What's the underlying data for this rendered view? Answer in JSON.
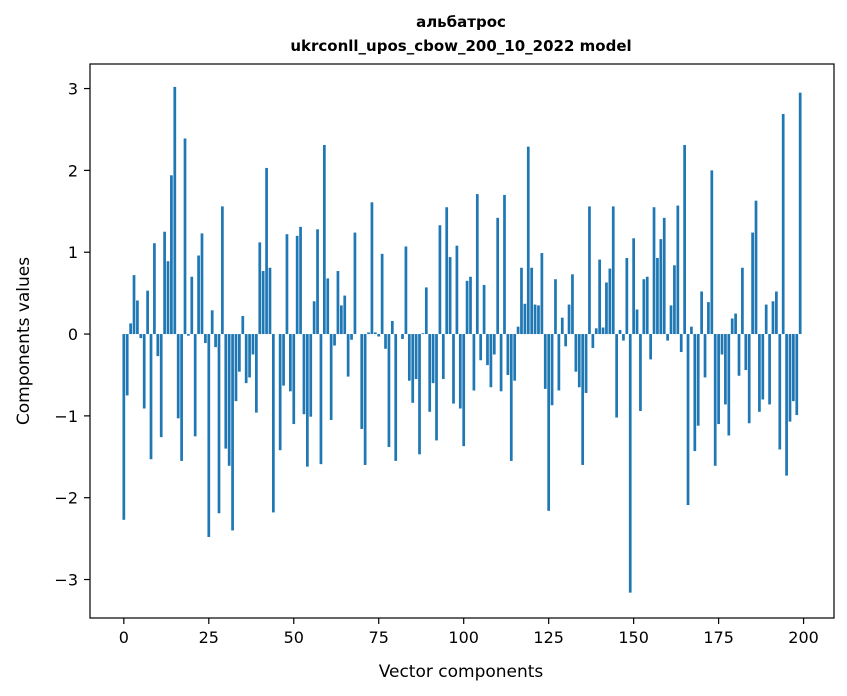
{
  "chart_data": {
    "type": "bar",
    "title_line1": "альбатрос",
    "title_line2": "ukrconll_upos_cbow_200_10_2022 model",
    "xlabel": "Vector components",
    "ylabel": "Components values",
    "xlim": [
      -9.95,
      208.95
    ],
    "ylim": [
      -3.47,
      3.3
    ],
    "xticks": [
      0,
      25,
      50,
      75,
      100,
      125,
      150,
      175,
      200
    ],
    "xtick_labels": [
      "0",
      "25",
      "50",
      "75",
      "100",
      "125",
      "150",
      "175",
      "200"
    ],
    "yticks": [
      -3,
      -2,
      -1,
      0,
      1,
      2,
      3
    ],
    "ytick_labels": [
      "−3",
      "−2",
      "−1",
      "0",
      "1",
      "2",
      "3"
    ],
    "bar_color": "#1f77b4",
    "grid": false,
    "legend": "none",
    "values": [
      -2.27,
      -0.75,
      0.13,
      0.72,
      0.41,
      -0.05,
      -0.91,
      0.53,
      -1.53,
      1.11,
      -0.27,
      -1.26,
      1.25,
      0.89,
      1.94,
      3.02,
      -1.03,
      -1.55,
      2.39,
      -0.02,
      0.7,
      -1.25,
      0.96,
      1.23,
      -0.11,
      -2.48,
      0.29,
      -0.16,
      -2.19,
      1.56,
      -1.4,
      -1.61,
      -2.4,
      -0.82,
      -0.46,
      0.22,
      -0.6,
      -0.53,
      -0.25,
      -0.96,
      1.12,
      0.77,
      2.03,
      0.81,
      -2.18,
      0.0,
      -1.42,
      -0.63,
      1.22,
      -0.7,
      -1.1,
      1.2,
      1.31,
      -0.98,
      -1.62,
      -1.01,
      0.4,
      1.28,
      -1.59,
      2.31,
      0.68,
      -1.05,
      -0.14,
      0.77,
      0.35,
      0.47,
      -0.52,
      -0.07,
      1.24,
      0.0,
      -1.16,
      -1.6,
      0.02,
      1.61,
      0.02,
      -0.03,
      0.98,
      -0.18,
      -1.38,
      0.16,
      -1.55,
      0.0,
      -0.06,
      1.07,
      -0.57,
      -0.84,
      -0.55,
      -1.47,
      0.01,
      0.57,
      -0.95,
      -0.6,
      -1.3,
      1.33,
      -0.55,
      1.55,
      0.94,
      -0.85,
      1.08,
      -0.91,
      -1.37,
      0.65,
      0.7,
      -0.69,
      1.71,
      -0.32,
      0.6,
      -0.38,
      -0.65,
      -0.25,
      1.42,
      -0.7,
      1.7,
      -0.5,
      -1.55,
      -0.57,
      0.09,
      0.81,
      0.37,
      2.29,
      0.81,
      0.36,
      0.35,
      0.99,
      -0.67,
      -2.16,
      -0.87,
      0.67,
      -0.69,
      0.2,
      -0.15,
      0.36,
      0.73,
      -0.46,
      -0.65,
      -1.6,
      -0.72,
      1.56,
      -0.17,
      0.07,
      0.91,
      0.08,
      0.63,
      0.8,
      1.56,
      -1.02,
      0.05,
      -0.08,
      0.93,
      -3.16,
      1.17,
      0.3,
      -0.94,
      0.67,
      0.7,
      -0.31,
      1.55,
      0.93,
      1.16,
      1.42,
      -0.08,
      0.35,
      0.84,
      1.57,
      -0.22,
      2.31,
      -2.09,
      0.09,
      -1.43,
      -1.12,
      0.52,
      -0.53,
      0.39,
      2.0,
      -1.61,
      -1.1,
      -0.25,
      -0.86,
      -1.24,
      0.19,
      0.25,
      -0.51,
      0.81,
      -0.44,
      -1.09,
      1.24,
      1.63,
      -0.95,
      -0.8,
      0.36,
      -0.86,
      0.4,
      0.52,
      -1.41,
      2.69,
      -1.73,
      -1.07,
      -0.82,
      -0.99,
      2.95
    ]
  }
}
